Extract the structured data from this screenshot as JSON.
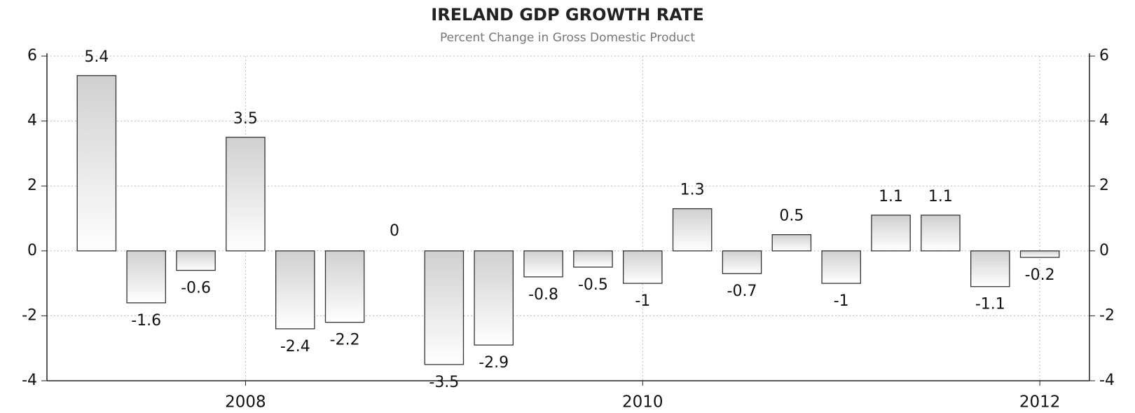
{
  "chart_data": {
    "type": "bar",
    "title": "IRELAND GDP GROWTH RATE",
    "subtitle": "Percent Change in Gross Domestic Product",
    "categories": [
      null,
      null,
      null,
      "2008",
      null,
      null,
      null,
      null,
      null,
      null,
      null,
      "2010",
      null,
      null,
      null,
      null,
      null,
      null,
      null,
      "2012"
    ],
    "values": [
      5.4,
      -1.6,
      -0.6,
      3.5,
      -2.4,
      -2.2,
      0,
      -3.5,
      -2.9,
      -0.8,
      -0.5,
      -1,
      1.3,
      -0.7,
      0.5,
      -1,
      1.1,
      1.1,
      -1.1,
      -0.2
    ],
    "color": "#d0d0d0",
    "ylim": [
      -4,
      6
    ],
    "yticks": [
      -4,
      -2,
      0,
      2,
      4,
      6
    ],
    "grid": true
  }
}
